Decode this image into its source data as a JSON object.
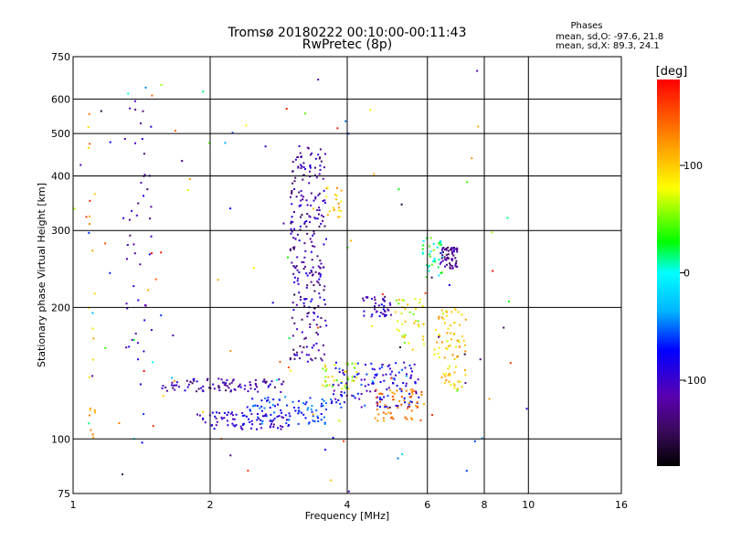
{
  "chart_data": {
    "type": "scatter",
    "title": "Tromsø 20180222 00:10:00-00:11:43",
    "subtitle": "RwPretec (8p)",
    "xlabel": "Frequency [MHz]",
    "ylabel": "Stationary phase Virtual Height [km]",
    "x_scale": "log",
    "y_scale": "log",
    "xlim": [
      1,
      16
    ],
    "ylim": [
      75,
      750
    ],
    "x_ticks": [
      1,
      2,
      4,
      6,
      8,
      10,
      16
    ],
    "x_tick_labels": [
      "1",
      "2",
      "4",
      "6",
      "8",
      "10",
      "16"
    ],
    "y_ticks": [
      75,
      100,
      200,
      300,
      400,
      500,
      600,
      750
    ],
    "y_tick_labels": [
      "75",
      "100",
      "200",
      "300",
      "400",
      "500",
      "600",
      "750"
    ],
    "grid": true,
    "legend": {
      "title": "Phases",
      "line1": "mean, sd,O: -97.6, 21.8",
      "line2": "mean, sd,X:  89.3, 24.1",
      "placement": "top-right"
    },
    "colorbar": {
      "label": "[deg]",
      "range": [
        -180,
        180
      ],
      "tick_values": [
        100,
        0,
        -100
      ],
      "tick_labels": [
        "100",
        "0",
        "-100"
      ]
    },
    "clusters": [
      {
        "f": [
          1.28,
          1.5
        ],
        "h": [
          150,
          600
        ],
        "phase": [
          -140,
          -80
        ],
        "n": 45
      },
      {
        "f": [
          1.08,
          1.12
        ],
        "h": [
          90,
          620
        ],
        "phase": [
          90,
          150
        ],
        "n": 22
      },
      {
        "f": [
          1.55,
          2.9
        ],
        "h": [
          128,
          138
        ],
        "phase": [
          -150,
          -80
        ],
        "n": 90
      },
      {
        "f": [
          1.85,
          3.0
        ],
        "h": [
          105,
          115
        ],
        "phase": [
          -130,
          -70
        ],
        "n": 80
      },
      {
        "f": [
          2.35,
          3.7
        ],
        "h": [
          108,
          125
        ],
        "phase": [
          -90,
          -40
        ],
        "n": 90
      },
      {
        "f": [
          3.0,
          3.6
        ],
        "h": [
          150,
          470
        ],
        "phase": [
          -150,
          -80
        ],
        "n": 260
      },
      {
        "f": [
          3.5,
          4.2
        ],
        "h": [
          130,
          150
        ],
        "phase": [
          40,
          110
        ],
        "n": 40
      },
      {
        "f": [
          3.7,
          5.8
        ],
        "h": [
          118,
          150
        ],
        "phase": [
          -120,
          -50
        ],
        "n": 130
      },
      {
        "f": [
          4.6,
          5.9
        ],
        "h": [
          110,
          130
        ],
        "phase": [
          110,
          150
        ],
        "n": 60
      },
      {
        "f": [
          4.3,
          5.0
        ],
        "h": [
          190,
          212
        ],
        "phase": [
          -140,
          -70
        ],
        "n": 40
      },
      {
        "f": [
          5.1,
          5.9
        ],
        "h": [
          160,
          210
        ],
        "phase": [
          40,
          110
        ],
        "n": 40
      },
      {
        "f": [
          5.8,
          6.5
        ],
        "h": [
          230,
          290
        ],
        "phase": [
          -20,
          60
        ],
        "n": 40
      },
      {
        "f": [
          6.4,
          7.0
        ],
        "h": [
          245,
          275
        ],
        "phase": [
          -150,
          -100
        ],
        "n": 60
      },
      {
        "f": [
          6.2,
          7.3
        ],
        "h": [
          130,
          200
        ],
        "phase": [
          70,
          130
        ],
        "n": 80
      },
      {
        "f": [
          3.6,
          3.9
        ],
        "h": [
          320,
          380
        ],
        "phase": [
          80,
          130
        ],
        "n": 20
      },
      {
        "f": [
          1.0,
          10.0
        ],
        "h": [
          75,
          700
        ],
        "phase": [
          -180,
          180
        ],
        "n": 120
      }
    ]
  }
}
